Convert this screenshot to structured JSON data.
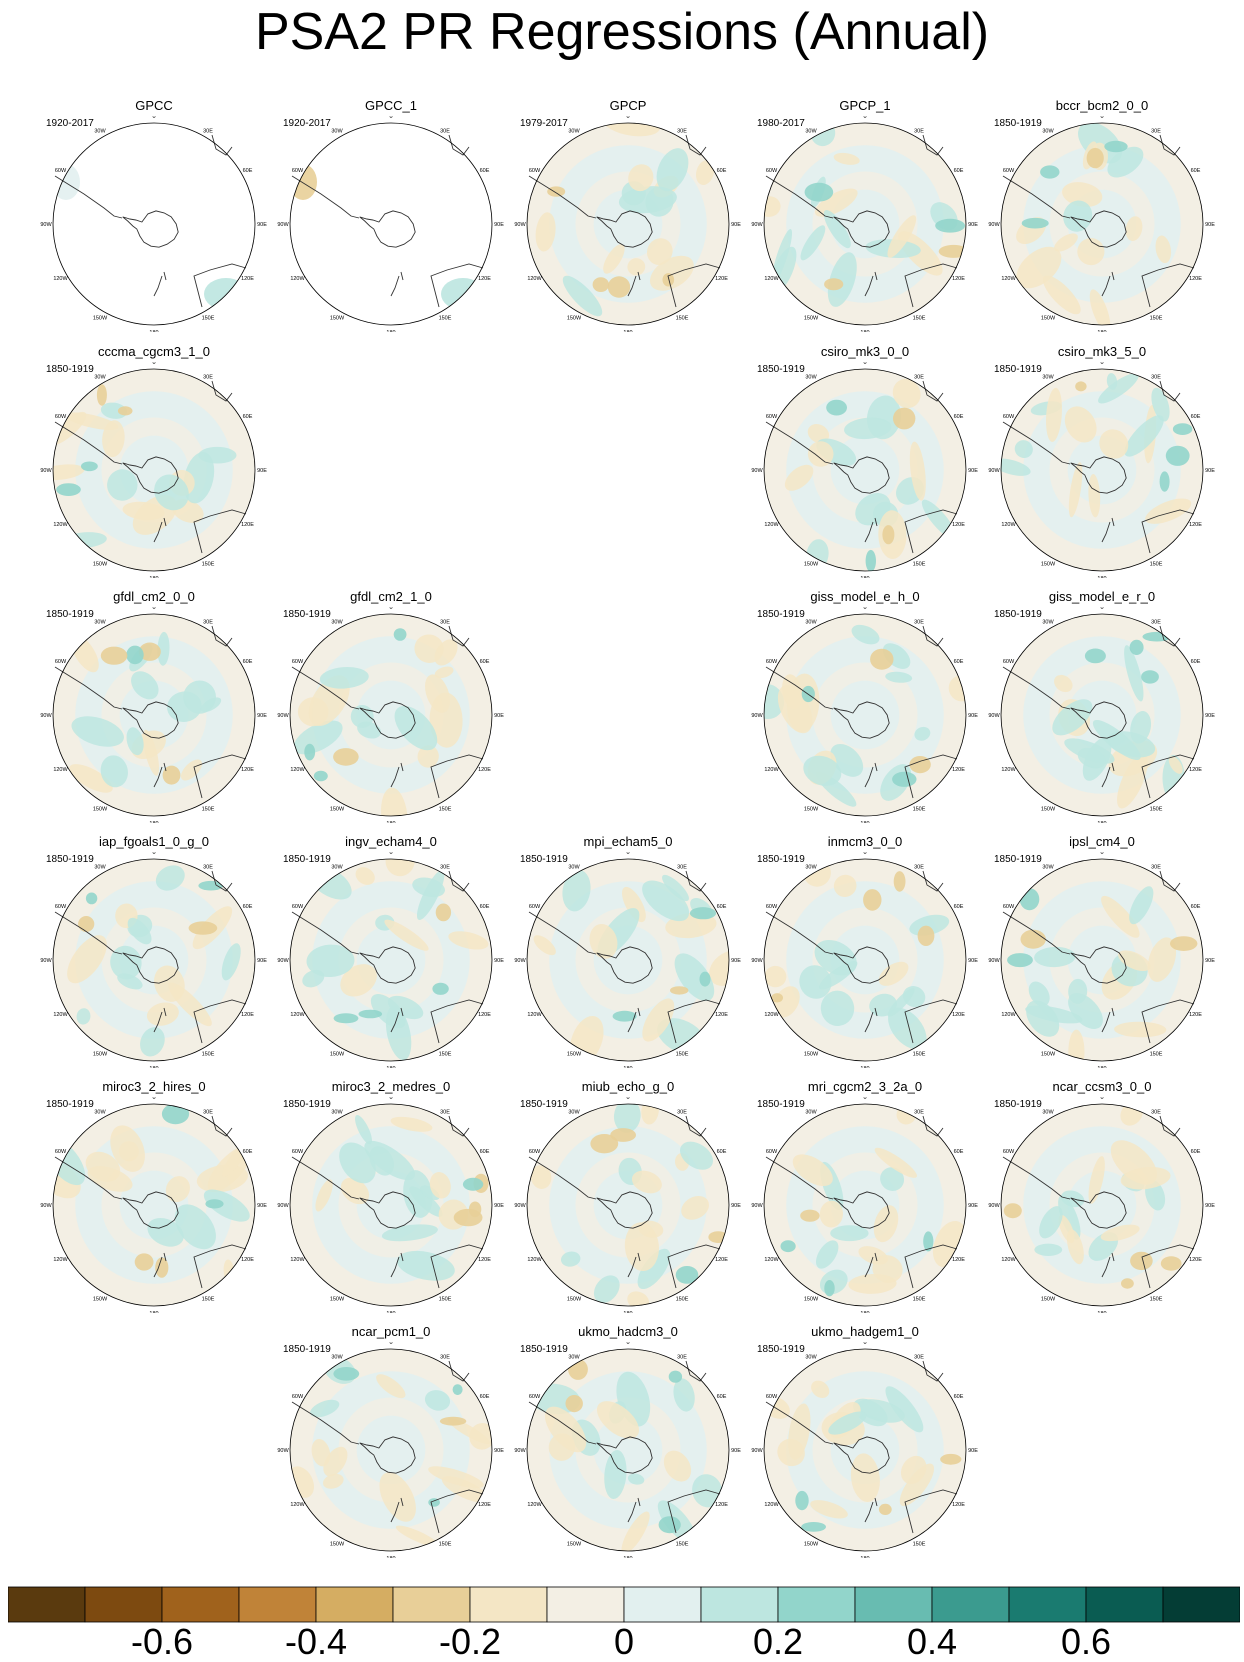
{
  "title": "PSA2 PR Regressions (Annual)",
  "lon_labels": [
    "0",
    "30E",
    "60E",
    "90E",
    "120E",
    "150E",
    "180",
    "150W",
    "120W",
    "90W",
    "60W",
    "30W"
  ],
  "panels": [
    {
      "name": "GPCC",
      "period": "1920-2017",
      "row": 0,
      "col": 0,
      "field": "sparse"
    },
    {
      "name": "GPCC_1",
      "period": "1920-2017",
      "row": 0,
      "col": 1,
      "field": "sparse"
    },
    {
      "name": "GPCP",
      "period": "1979-2017",
      "row": 0,
      "col": 2,
      "field": "full"
    },
    {
      "name": "GPCP_1",
      "period": "1980-2017",
      "row": 0,
      "col": 3,
      "field": "full"
    },
    {
      "name": "bccr_bcm2_0_0",
      "period": "1850-1919",
      "row": 0,
      "col": 4,
      "field": "full"
    },
    {
      "name": "cccma_cgcm3_1_0",
      "period": "1850-1919",
      "row": 1,
      "col": 0,
      "field": "full"
    },
    {
      "name": "csiro_mk3_0_0",
      "period": "1850-1919",
      "row": 1,
      "col": 3,
      "field": "full"
    },
    {
      "name": "csiro_mk3_5_0",
      "period": "1850-1919",
      "row": 1,
      "col": 4,
      "field": "full"
    },
    {
      "name": "gfdl_cm2_0_0",
      "period": "1850-1919",
      "row": 2,
      "col": 0,
      "field": "full"
    },
    {
      "name": "gfdl_cm2_1_0",
      "period": "1850-1919",
      "row": 2,
      "col": 1,
      "field": "full"
    },
    {
      "name": "giss_model_e_h_0",
      "period": "1850-1919",
      "row": 2,
      "col": 3,
      "field": "full"
    },
    {
      "name": "giss_model_e_r_0",
      "period": "1850-1919",
      "row": 2,
      "col": 4,
      "field": "full"
    },
    {
      "name": "iap_fgoals1_0_g_0",
      "period": "1850-1919",
      "row": 3,
      "col": 0,
      "field": "full"
    },
    {
      "name": "ingv_echam4_0",
      "period": "1850-1919",
      "row": 3,
      "col": 1,
      "field": "full"
    },
    {
      "name": "mpi_echam5_0",
      "period": "1850-1919",
      "row": 3,
      "col": 2,
      "field": "full"
    },
    {
      "name": "inmcm3_0_0",
      "period": "1850-1919",
      "row": 3,
      "col": 3,
      "field": "full"
    },
    {
      "name": "ipsl_cm4_0",
      "period": "1850-1919",
      "row": 3,
      "col": 4,
      "field": "full"
    },
    {
      "name": "miroc3_2_hires_0",
      "period": "1850-1919",
      "row": 4,
      "col": 0,
      "field": "full"
    },
    {
      "name": "miroc3_2_medres_0",
      "period": "1850-1919",
      "row": 4,
      "col": 1,
      "field": "full"
    },
    {
      "name": "miub_echo_g_0",
      "period": "1850-1919",
      "row": 4,
      "col": 2,
      "field": "full"
    },
    {
      "name": "mri_cgcm2_3_2a_0",
      "period": "1850-1919",
      "row": 4,
      "col": 3,
      "field": "full"
    },
    {
      "name": "ncar_ccsm3_0_0",
      "period": "1850-1919",
      "row": 4,
      "col": 4,
      "field": "full"
    },
    {
      "name": "ncar_pcm1_0",
      "period": "1850-1919",
      "row": 5,
      "col": 1,
      "field": "full"
    },
    {
      "name": "ukmo_hadcm3_0",
      "period": "1850-1919",
      "row": 5,
      "col": 2,
      "field": "full"
    },
    {
      "name": "ukmo_hadgem1_0",
      "period": "1850-1919",
      "row": 5,
      "col": 3,
      "field": "full"
    }
  ],
  "colorbar": {
    "colors": [
      "#5a3a0e",
      "#7d4a10",
      "#a0621c",
      "#c08338",
      "#d5ad62",
      "#e8cf98",
      "#f4e6c5",
      "#f3efe4",
      "#e2f0ef",
      "#bde6e0",
      "#92d5cb",
      "#68bcb1",
      "#3b9b8f",
      "#1a7b70",
      "#0a5c52",
      "#043d35"
    ],
    "tick_labels": [
      "-0.6",
      "-0.4",
      "-0.2",
      "0",
      "0.2",
      "0.4",
      "0.6"
    ],
    "tick_values": [
      -0.6,
      -0.4,
      -0.2,
      0,
      0.2,
      0.4,
      0.6
    ],
    "range": [
      -0.8,
      0.8
    ]
  }
}
